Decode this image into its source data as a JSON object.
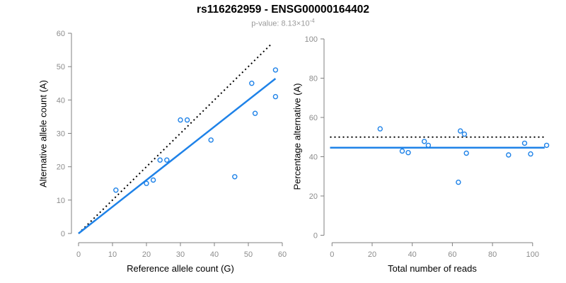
{
  "title": "rs116262959 - ENSG00000164402",
  "subtitle": {
    "prefix": "p-value: 8.13×10",
    "exponent": "-4"
  },
  "colors": {
    "accent_blue": "#1E82E8",
    "identity_black": "#000000",
    "axis_gray": "#808080",
    "tick_label_gray": "#8c8c8c",
    "subtitle_gray": "#9a9a9a",
    "background": "#ffffff"
  },
  "chart_data": [
    {
      "type": "scatter",
      "title": "rs116262959 - ENSG00000164402",
      "subtitle": "p-value: 8.13×10^-4",
      "xlabel": "Reference allele count (G)",
      "ylabel": "Alternative allele count (A)",
      "xlim": [
        0,
        60
      ],
      "ylim": [
        0,
        60
      ],
      "xticks": [
        0,
        10,
        20,
        30,
        40,
        50,
        60
      ],
      "yticks": [
        0,
        10,
        20,
        30,
        40,
        50,
        60
      ],
      "grid": false,
      "legend": false,
      "points": [
        [
          11,
          13
        ],
        [
          20,
          15
        ],
        [
          22,
          16
        ],
        [
          24,
          22
        ],
        [
          26,
          22
        ],
        [
          30,
          34
        ],
        [
          32,
          34
        ],
        [
          39,
          28
        ],
        [
          46,
          17
        ],
        [
          51,
          45
        ],
        [
          52,
          36
        ],
        [
          58,
          41
        ],
        [
          58,
          49
        ]
      ],
      "lines": [
        {
          "name": "identity-line",
          "style": "dotted",
          "color": "#000000",
          "from": [
            0,
            0
          ],
          "to": [
            57,
            57
          ]
        },
        {
          "name": "regression-line",
          "style": "solid",
          "color": "#1E82E8",
          "from": [
            0,
            0
          ],
          "to": [
            58,
            46.4
          ]
        }
      ]
    },
    {
      "type": "scatter",
      "xlabel": "Total number of reads",
      "ylabel": "Percentage alternative (A)",
      "xlim": [
        0,
        108
      ],
      "ylim": [
        0,
        100
      ],
      "xticks": [
        0,
        20,
        40,
        60,
        80,
        100
      ],
      "yticks": [
        0,
        20,
        40,
        60,
        80,
        100
      ],
      "grid": false,
      "legend": false,
      "points": [
        [
          24,
          54.2
        ],
        [
          35,
          42.9
        ],
        [
          38,
          42.1
        ],
        [
          46,
          47.8
        ],
        [
          48,
          45.8
        ],
        [
          63,
          27.0
        ],
        [
          64,
          53.1
        ],
        [
          66,
          51.5
        ],
        [
          67,
          41.8
        ],
        [
          88,
          40.9
        ],
        [
          96,
          46.9
        ],
        [
          99,
          41.4
        ],
        [
          107,
          45.8
        ]
      ],
      "lines": [
        {
          "name": "reference-line-50pct",
          "style": "dotted",
          "color": "#000000",
          "from": [
            -1,
            50
          ],
          "to": [
            106,
            50
          ]
        },
        {
          "name": "mean-line",
          "style": "solid",
          "color": "#1E82E8",
          "from": [
            -1,
            44.6
          ],
          "to": [
            106,
            44.6
          ]
        }
      ]
    }
  ]
}
